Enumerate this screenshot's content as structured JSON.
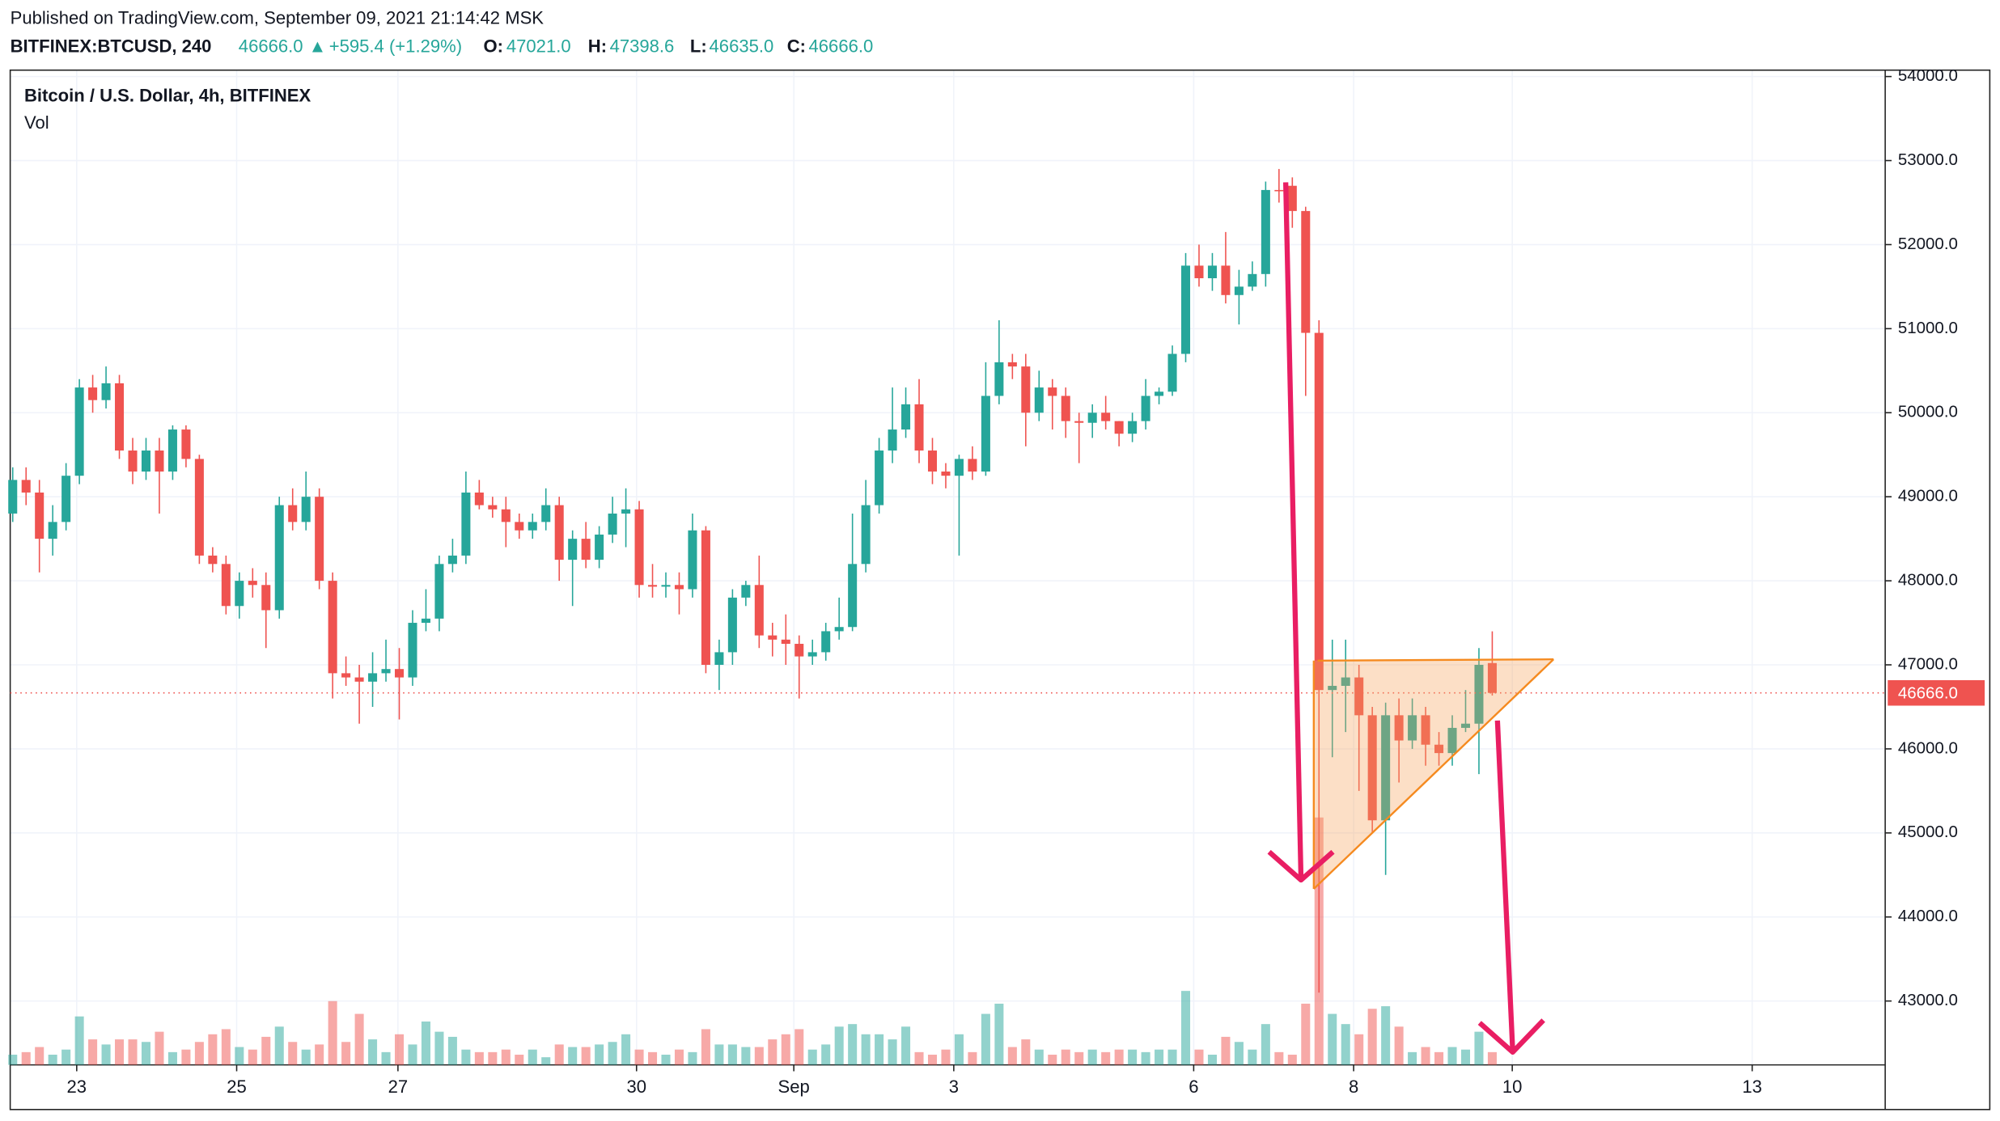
{
  "header": {
    "published": "Published on TradingView.com, September 09, 2021 21:14:42 MSK",
    "symbol": "BITFINEX:BTCUSD, 240",
    "last": "46666.0",
    "arrow": "▲",
    "change": "+595.4 (+1.29%)",
    "o_label": "O:",
    "o": "47021.0",
    "h_label": "H:",
    "h": "47398.6",
    "l_label": "L:",
    "l": "46635.0",
    "c_label": "C:",
    "c": "46666.0"
  },
  "chart_data": {
    "type": "candlestick",
    "title": "Bitcoin / U.S. Dollar, 4h, BITFINEX",
    "volume_label": "Vol",
    "up_color": "#26a69a",
    "down_color": "#ef5350",
    "open": [
      48800,
      49200,
      49050,
      48500,
      48700,
      49250,
      50300,
      50150,
      50350,
      49550,
      49300,
      49550,
      49300,
      49800,
      49450,
      48300,
      48200,
      47700,
      48000,
      47950,
      47650,
      48900,
      48700,
      49000,
      48000,
      46900,
      46850,
      46800,
      46900,
      46950,
      46850,
      47500,
      47550,
      48200,
      48300,
      49050,
      48900,
      48850,
      48700,
      48600,
      48700,
      48900,
      48250,
      48500,
      48250,
      48550,
      48800,
      48850,
      47950,
      47930,
      47950,
      47900,
      48600,
      47000,
      47150,
      47800,
      47950,
      47350,
      47300,
      47250,
      47100,
      47150,
      47400,
      47450,
      48200,
      48900,
      49550,
      49800,
      50100,
      49550,
      49300,
      49250,
      49450,
      49300,
      50200,
      50600,
      50550,
      50000,
      50300,
      50200,
      49900,
      49880,
      50000,
      49900,
      49750,
      49900,
      50200,
      50250,
      50700,
      51750,
      51600,
      51750,
      51400,
      51500,
      51650,
      52650,
      52700,
      52400,
      50950,
      46700,
      46750,
      46850,
      46400,
      45150,
      46400,
      46100,
      46400,
      46050,
      45950,
      46250,
      46300,
      47021
    ],
    "high": [
      49350,
      49350,
      49200,
      48900,
      49400,
      50400,
      50450,
      50550,
      50450,
      49700,
      49700,
      49700,
      49850,
      49850,
      49500,
      48400,
      48300,
      48100,
      48150,
      48100,
      49000,
      49100,
      49300,
      49100,
      48100,
      47100,
      47000,
      47150,
      47300,
      47200,
      47650,
      47900,
      48300,
      48500,
      49300,
      49200,
      49000,
      49000,
      48800,
      48800,
      49100,
      49000,
      48600,
      48700,
      48650,
      49000,
      49100,
      48950,
      48200,
      48100,
      48100,
      48800,
      48650,
      47300,
      47900,
      48000,
      48300,
      47500,
      47600,
      47350,
      47300,
      47500,
      47800,
      48800,
      49200,
      49700,
      50300,
      50300,
      50400,
      49700,
      49400,
      49500,
      49600,
      50600,
      51100,
      50700,
      50700,
      50500,
      50400,
      50300,
      50000,
      50100,
      50200,
      49900,
      50000,
      50400,
      50300,
      50800,
      51900,
      52000,
      51900,
      52150,
      51700,
      51800,
      52750,
      52900,
      52800,
      52450,
      51100,
      47300,
      47300,
      47000,
      46500,
      46550,
      46600,
      46600,
      46500,
      46200,
      46400,
      46700,
      47200,
      47398.6
    ],
    "low": [
      48700,
      48900,
      48100,
      48300,
      48600,
      49150,
      50000,
      50050,
      49450,
      49150,
      49200,
      48800,
      49200,
      49350,
      48200,
      48100,
      47600,
      47550,
      47800,
      47200,
      47550,
      48600,
      48600,
      47900,
      46600,
      46750,
      46300,
      46500,
      46800,
      46350,
      46750,
      47400,
      47400,
      48100,
      48200,
      48850,
      48750,
      48400,
      48500,
      48500,
      48600,
      48000,
      47700,
      48150,
      48150,
      48450,
      48400,
      47800,
      47800,
      47800,
      47600,
      47800,
      46900,
      46700,
      47000,
      47700,
      47200,
      47100,
      47000,
      46600,
      47000,
      47050,
      47300,
      47400,
      48100,
      48800,
      49400,
      49700,
      49400,
      49150,
      49100,
      48300,
      49200,
      49250,
      50100,
      50400,
      49600,
      49900,
      49800,
      49700,
      49400,
      49700,
      49800,
      49600,
      49650,
      49800,
      50100,
      50200,
      50600,
      51500,
      51450,
      51300,
      51050,
      51450,
      51500,
      52500,
      52200,
      50200,
      43100,
      45900,
      46200,
      45500,
      45000,
      44500,
      45600,
      46000,
      45800,
      45800,
      45800,
      46200,
      45700,
      46635
    ],
    "close": [
      49200,
      49050,
      48500,
      48700,
      49250,
      50300,
      50150,
      50350,
      49550,
      49300,
      49550,
      49300,
      49800,
      49450,
      48300,
      48200,
      47700,
      48000,
      47950,
      47650,
      48900,
      48700,
      49000,
      48000,
      46900,
      46850,
      46800,
      46900,
      46950,
      46850,
      47500,
      47550,
      48200,
      48300,
      49050,
      48900,
      48850,
      48700,
      48600,
      48700,
      48900,
      48250,
      48500,
      48250,
      48550,
      48800,
      48850,
      47950,
      47930,
      47950,
      47900,
      48600,
      47000,
      47150,
      47800,
      47950,
      47350,
      47300,
      47250,
      47100,
      47150,
      47400,
      47450,
      48200,
      48900,
      49550,
      49800,
      50100,
      49550,
      49300,
      49250,
      49450,
      49300,
      50200,
      50600,
      50550,
      50000,
      50300,
      50200,
      49900,
      49880,
      50000,
      49900,
      49750,
      49900,
      50200,
      50250,
      50700,
      51750,
      51600,
      51750,
      51400,
      51500,
      51650,
      52650,
      52640,
      52400,
      50950,
      46700,
      46750,
      46850,
      46400,
      45150,
      46400,
      46100,
      46400,
      46050,
      45950,
      46250,
      46300,
      47000,
      46666
    ],
    "volume": [
      8,
      10,
      14,
      8,
      12,
      38,
      20,
      16,
      20,
      20,
      18,
      26,
      10,
      12,
      18,
      24,
      28,
      14,
      12,
      22,
      30,
      18,
      12,
      16,
      50,
      18,
      40,
      20,
      10,
      24,
      16,
      34,
      26,
      22,
      12,
      10,
      10,
      12,
      8,
      12,
      6,
      16,
      14,
      14,
      16,
      18,
      24,
      12,
      10,
      8,
      12,
      10,
      28,
      16,
      16,
      14,
      14,
      20,
      24,
      28,
      12,
      16,
      30,
      32,
      24,
      24,
      20,
      30,
      10,
      8,
      12,
      24,
      10,
      40,
      48,
      14,
      20,
      12,
      8,
      12,
      10,
      12,
      10,
      12,
      12,
      10,
      12,
      12,
      58,
      12,
      8,
      22,
      18,
      12,
      32,
      10,
      8,
      48,
      194,
      40,
      32,
      24,
      44,
      46,
      30,
      10,
      14,
      10,
      14,
      12,
      26,
      10
    ],
    "last_price": {
      "value": 46666,
      "label": "46666.0"
    },
    "last_price_color": "#ef5350",
    "ylim": [
      42240,
      54076
    ],
    "yticks": [
      {
        "value": 43000,
        "label": "43000.0"
      },
      {
        "value": 44000,
        "label": "44000.0"
      },
      {
        "value": 45000,
        "label": "45000.0"
      },
      {
        "value": 46000,
        "label": "46000.0"
      },
      {
        "value": 47000,
        "label": "47000.0"
      },
      {
        "value": 48000,
        "label": "48000.0"
      },
      {
        "value": 49000,
        "label": "49000.0"
      },
      {
        "value": 50000,
        "label": "50000.0"
      },
      {
        "value": 51000,
        "label": "51000.0"
      },
      {
        "value": 52000,
        "label": "52000.0"
      },
      {
        "value": 53000,
        "label": "53000.0"
      },
      {
        "value": 54000,
        "label": "54000.0"
      }
    ],
    "xlim": [
      -0.19,
      140.48
    ],
    "xticks": [
      {
        "value": 4.8,
        "label": "23"
      },
      {
        "value": 16.8,
        "label": "25"
      },
      {
        "value": 28.9,
        "label": "27"
      },
      {
        "value": 46.8,
        "label": "30"
      },
      {
        "value": 58.6,
        "label": "Sep"
      },
      {
        "value": 70.6,
        "label": "3"
      },
      {
        "value": 88.6,
        "label": "6"
      },
      {
        "value": 100.6,
        "label": "8"
      },
      {
        "value": 112.5,
        "label": "10"
      },
      {
        "value": 130.5,
        "label": "13"
      }
    ],
    "grid": true
  }
}
